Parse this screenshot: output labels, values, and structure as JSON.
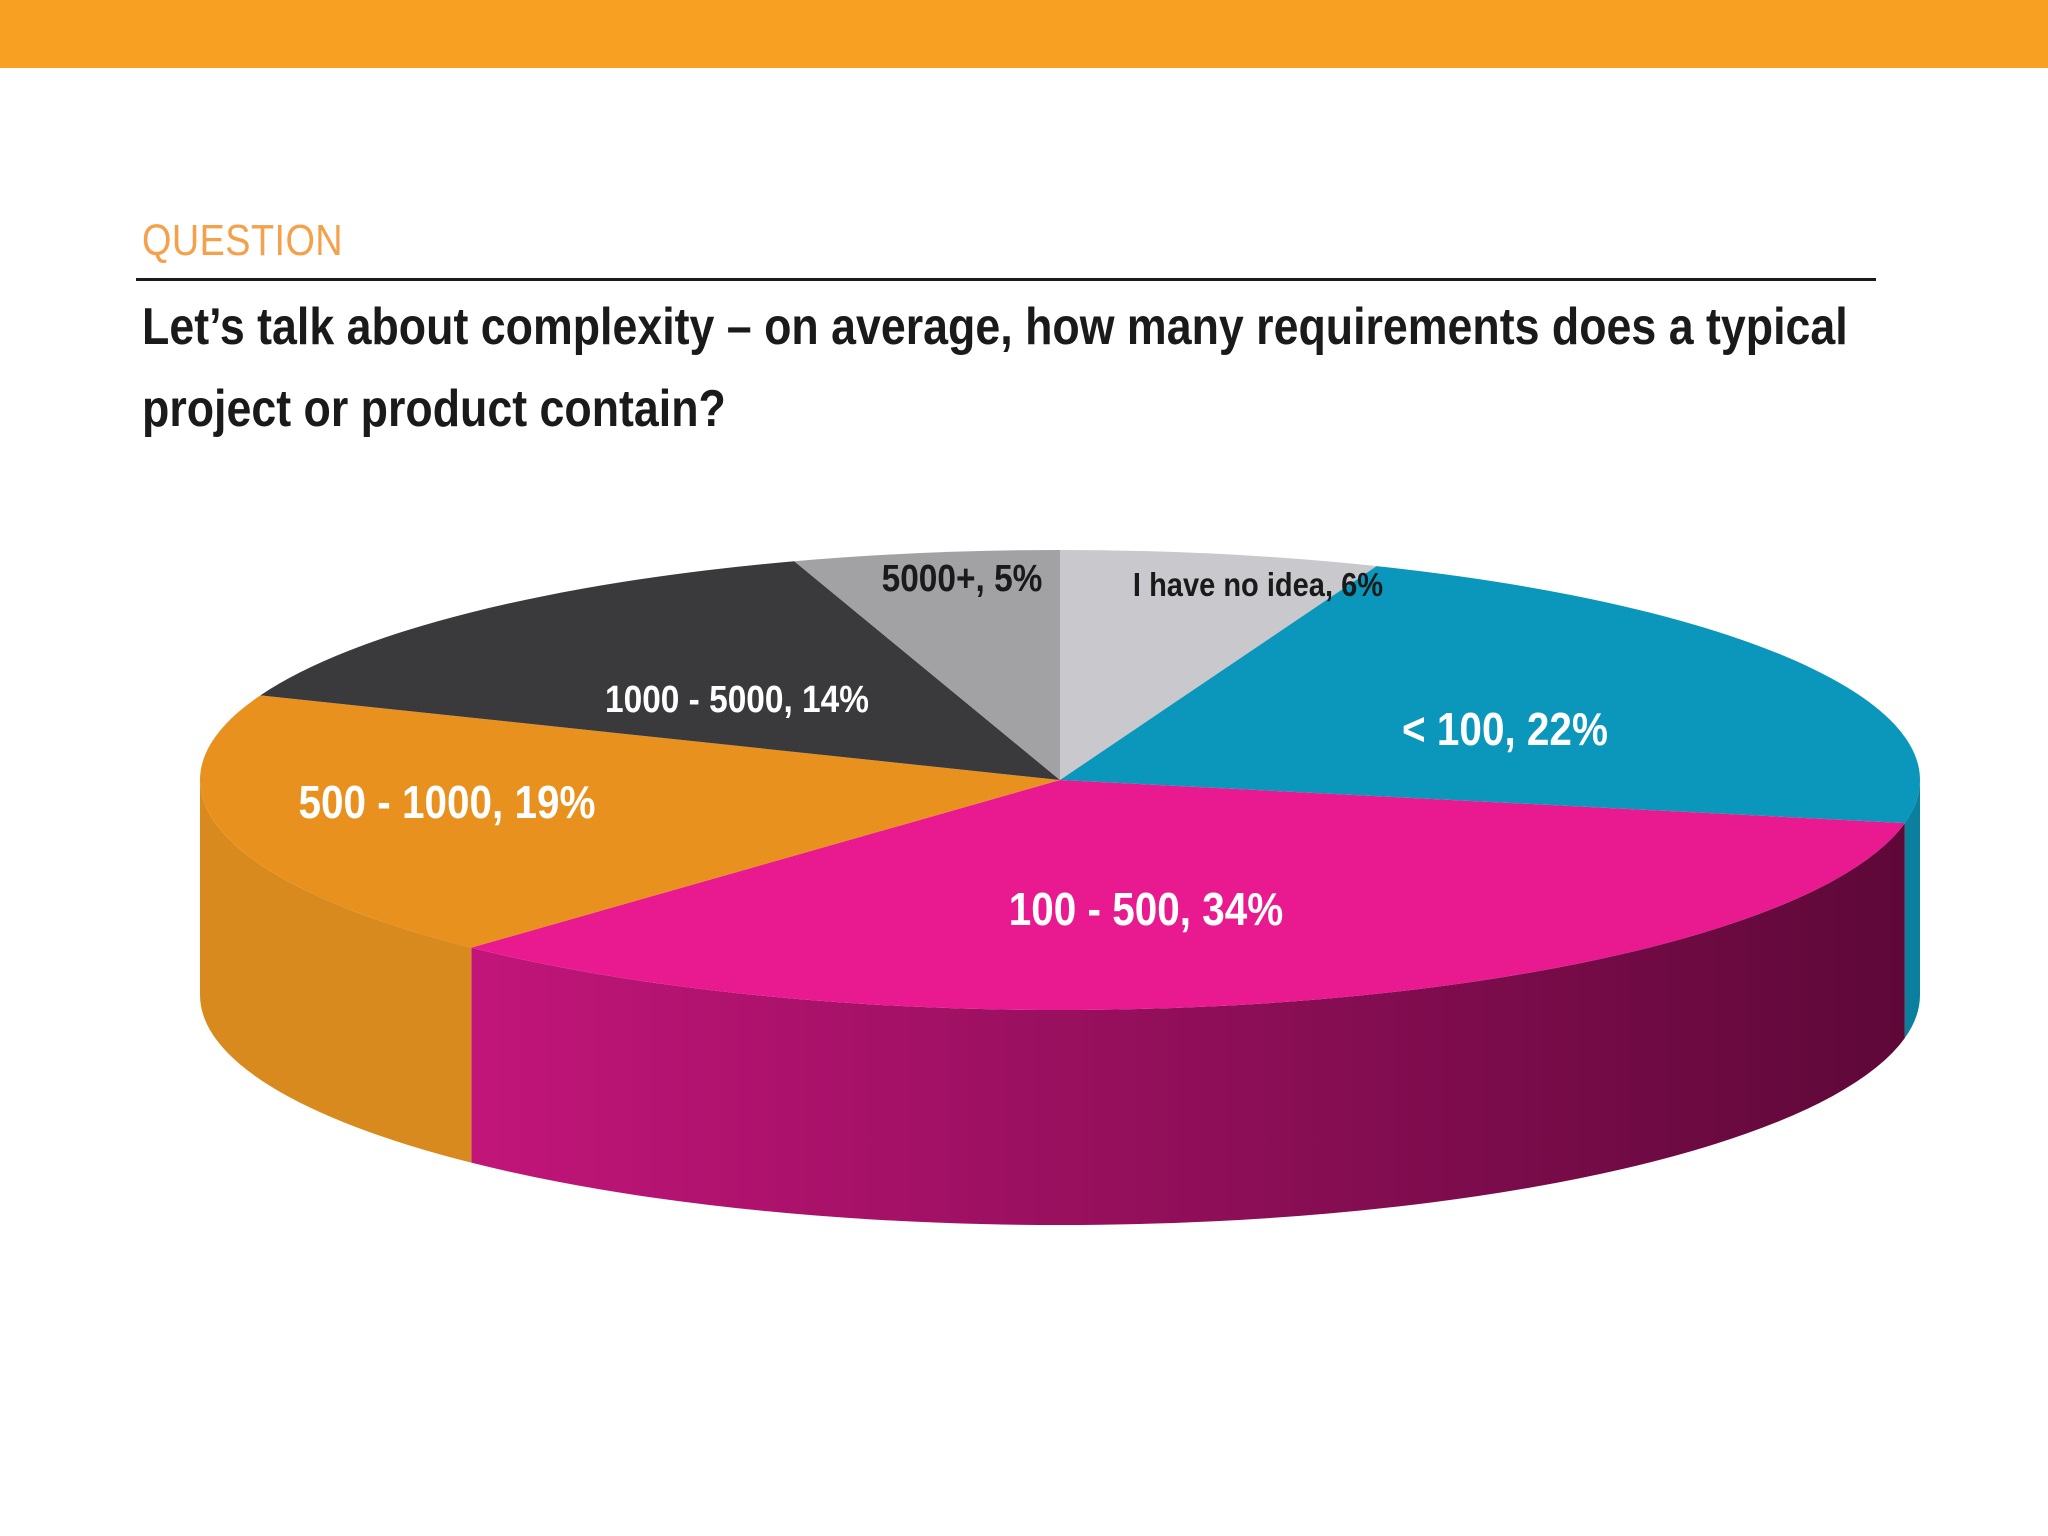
{
  "header": {
    "label": "QUESTION",
    "question": "Let’s talk about complexity – on average, how many requirements does a typical project or product contain?"
  },
  "colors": {
    "top_bar": "#f7a021",
    "label": "#f5a04a"
  },
  "chart_data": {
    "type": "pie",
    "style": "3d",
    "title": "",
    "unit": "%",
    "slices": [
      {
        "label": "I have no idea, 6%",
        "category": "I have no idea",
        "value": 6,
        "color": "#c9c8cc",
        "label_color": "#1a1a1a"
      },
      {
        "label": "< 100, 22%",
        "category": "< 100",
        "value": 22,
        "color": "#0b97bb",
        "side_color": "#0a7f9e",
        "label_color": "#ffffff"
      },
      {
        "label": "100 - 500, 34%",
        "category": "100 - 500",
        "value": 34,
        "color": "#e91a8f",
        "side_color": "#c2157a",
        "side_color_dark": "#5e0838",
        "label_color": "#ffffff"
      },
      {
        "label": "500 - 1000, 19%",
        "category": "500 - 1000",
        "value": 19,
        "color": "#e8911e",
        "side_color": "#d88a1e",
        "label_color": "#ffffff"
      },
      {
        "label": "1000 - 5000, 14%",
        "category": "1000 - 5000",
        "value": 14,
        "color": "#3a393b",
        "label_color": "#ffffff"
      },
      {
        "label": "5000+, 5%",
        "category": "5000+",
        "value": 5,
        "color": "#a2a1a4",
        "label_color": "#1a1a1a"
      }
    ]
  }
}
